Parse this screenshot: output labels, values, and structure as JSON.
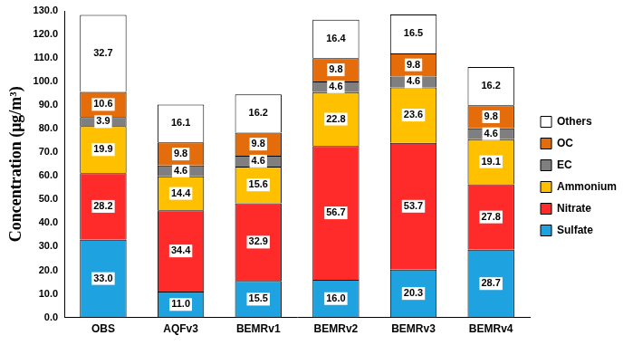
{
  "chart_data": {
    "type": "bar",
    "y_label": "Concentration (μg/m³)",
    "categories": [
      "OBS",
      "AQFv3",
      "BEMRv1",
      "BEMRv2",
      "BEMRv3",
      "BEMRv4"
    ],
    "series": [
      {
        "name": "Sulfate",
        "color": "#1fa2e0",
        "values": [
          33.0,
          11.0,
          15.5,
          16.0,
          20.3,
          28.7
        ],
        "value_labels": [
          "33.0",
          "11.0",
          "15.5",
          "16.0",
          "20.3",
          "28.7"
        ]
      },
      {
        "name": "Nitrate",
        "color": "#ff2b2b",
        "values": [
          28.2,
          34.4,
          32.9,
          56.7,
          53.7,
          27.8
        ],
        "value_labels": [
          "28.2",
          "34.4",
          "32.9",
          "56.7",
          "53.7",
          "27.8"
        ]
      },
      {
        "name": "Ammonium",
        "color": "#ffc000",
        "values": [
          19.9,
          14.4,
          15.6,
          22.8,
          23.6,
          19.1
        ],
        "value_labels": [
          "19.9",
          "14.4",
          "15.6",
          "22.8",
          "23.6",
          "19.1"
        ]
      },
      {
        "name": "EC",
        "color": "#7f7f7f",
        "values": [
          3.9,
          4.6,
          4.6,
          4.6,
          4.6,
          4.6
        ],
        "value_labels": [
          "3.9",
          "4.6",
          "4.6",
          "4.6",
          "4.6",
          "4.6"
        ]
      },
      {
        "name": "OC",
        "color": "#e46c0a",
        "values": [
          10.6,
          9.8,
          9.8,
          9.8,
          9.8,
          9.8
        ],
        "value_labels": [
          "10.6",
          "9.8",
          "9.8",
          "9.8",
          "9.8",
          "9.8"
        ]
      },
      {
        "name": "Others",
        "color": "#ffffff",
        "values": [
          32.7,
          16.1,
          16.2,
          16.4,
          16.5,
          16.2
        ],
        "value_labels": [
          "32.7",
          "16.1",
          "16.2",
          "16.4",
          "16.5",
          "16.2"
        ]
      }
    ],
    "ylim": [
      0,
      130
    ],
    "yticks": [
      {
        "value": 0,
        "label": "0.0"
      },
      {
        "value": 10,
        "label": "10.0"
      },
      {
        "value": 20,
        "label": "20.0"
      },
      {
        "value": 30,
        "label": "30.0"
      },
      {
        "value": 40,
        "label": "40.0"
      },
      {
        "value": 50,
        "label": "50.0"
      },
      {
        "value": 60,
        "label": "60.0"
      },
      {
        "value": 70,
        "label": "70.0"
      },
      {
        "value": 80,
        "label": "80.0"
      },
      {
        "value": 90,
        "label": "90.0"
      },
      {
        "value": 100,
        "label": "100.0"
      },
      {
        "value": 110,
        "label": "110.0"
      },
      {
        "value": 120,
        "label": "120.0"
      },
      {
        "value": 130,
        "label": "130.0"
      }
    ],
    "stacked": true,
    "data_labels": true,
    "legend": "right",
    "grid": false
  }
}
